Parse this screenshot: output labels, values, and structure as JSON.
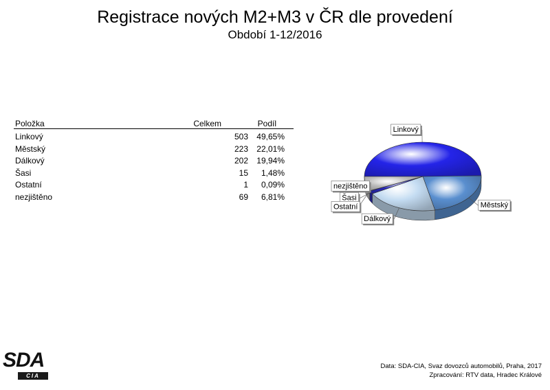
{
  "header": {
    "title": "Registrace nových M2+M3 v ČR dle provedení",
    "subtitle": "Období 1-12/2016"
  },
  "table": {
    "headers": [
      "Položka",
      "Celkem",
      "Podíl"
    ],
    "rows": [
      [
        "Linkový",
        "503",
        "49,65%"
      ],
      [
        "Městský",
        "223",
        "22,01%"
      ],
      [
        "Dálkový",
        "202",
        "19,94%"
      ],
      [
        "Šasi",
        "15",
        "1,48%"
      ],
      [
        "Ostatní",
        "1",
        "0,09%"
      ],
      [
        "nezjištěno",
        "69",
        "6,81%"
      ]
    ]
  },
  "chart_data": {
    "type": "pie",
    "title": "",
    "categories": [
      "Linkový",
      "Městský",
      "Dálkový",
      "Šasi",
      "Ostatní",
      "nezjištěno"
    ],
    "values": [
      503,
      223,
      202,
      15,
      1,
      69
    ],
    "shares_percent": [
      49.65,
      22.01,
      19.94,
      1.48,
      0.09,
      6.81
    ],
    "colors": [
      "#2424e8",
      "#5a8fcf",
      "#c4dcf2",
      "#2a2ab8",
      "#7878d8",
      "#bdbdbd"
    ],
    "style": "3d"
  },
  "logo": {
    "main": "SDA",
    "sub": "CIA"
  },
  "footer": {
    "source": "Data: SDA-CIA, Svaz dovozců automobilů, Praha, 2017",
    "processing": "Zpracování: RTV data, Hradec Králové"
  }
}
